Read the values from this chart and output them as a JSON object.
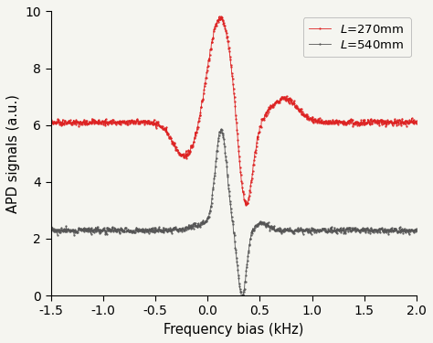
{
  "title": "",
  "xlabel": "Frequency bias (kHz)",
  "ylabel": "APD signals (a.u.)",
  "xlim": [
    -1.5,
    2.0
  ],
  "ylim": [
    0,
    10
  ],
  "xticks": [
    -1.5,
    -1.0,
    -0.5,
    0.0,
    0.5,
    1.0,
    1.5,
    2.0
  ],
  "yticks": [
    0,
    2,
    4,
    6,
    8,
    10
  ],
  "red_label": "$L$=270mm",
  "black_label": "$L$=540mm",
  "red_color": "#dd2222",
  "black_color": "#555555",
  "background_color": "#f5f5f0",
  "noise_amplitude": 0.05,
  "noise_seed": 7
}
